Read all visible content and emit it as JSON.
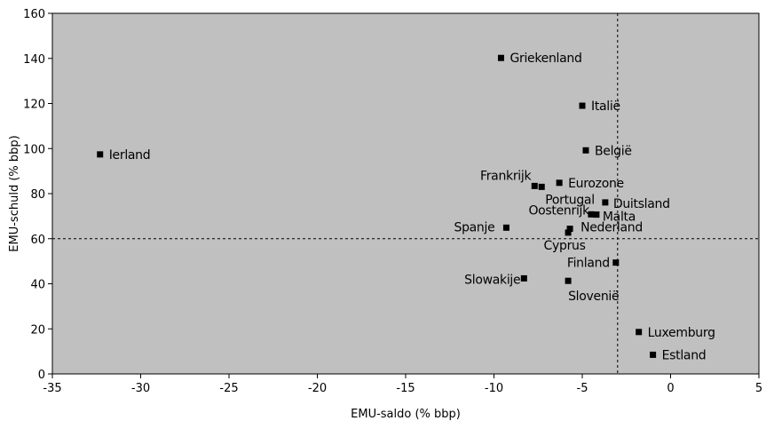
{
  "chart_data": {
    "type": "scatter",
    "xlabel": "EMU-saldo (% bbp)",
    "ylabel": "EMU-schuld (% bbp)",
    "xlim": [
      -35,
      5
    ],
    "ylim": [
      0,
      160
    ],
    "xticks": [
      -35,
      -30,
      -25,
      -20,
      -15,
      -10,
      -5,
      0,
      5
    ],
    "yticks": [
      0,
      20,
      40,
      60,
      80,
      100,
      120,
      140,
      160
    ],
    "reference_lines": {
      "x": -3,
      "y": 60
    },
    "grid": false,
    "background": "#c0c0c0",
    "marker_color": "#000000",
    "points": [
      {
        "label": "Griekenland",
        "x": -9.6,
        "y": 140.2
      },
      {
        "label": "Italië",
        "x": -5.0,
        "y": 119.0
      },
      {
        "label": "Ierland",
        "x": -32.3,
        "y": 97.4
      },
      {
        "label": "België",
        "x": -4.8,
        "y": 99.2
      },
      {
        "label": "Frankrijk",
        "x": -7.7,
        "y": 83.4
      },
      {
        "label": "Portugal",
        "x": -7.3,
        "y": 83.0
      },
      {
        "label": "Eurozone",
        "x": -6.3,
        "y": 84.8
      },
      {
        "label": "Duitsland",
        "x": -3.7,
        "y": 76.1
      },
      {
        "label": "Oostenrijk",
        "x": -4.5,
        "y": 70.8
      },
      {
        "label": "Malta",
        "x": -4.2,
        "y": 70.7
      },
      {
        "label": "Spanje",
        "x": -9.3,
        "y": 64.9
      },
      {
        "label": "Nederland",
        "x": -5.7,
        "y": 64.4
      },
      {
        "label": "Cyprus",
        "x": -5.8,
        "y": 62.7
      },
      {
        "label": "Finland",
        "x": -3.1,
        "y": 49.4
      },
      {
        "label": "Slowakije",
        "x": -8.3,
        "y": 42.4
      },
      {
        "label": "Slovenië",
        "x": -5.8,
        "y": 41.3
      },
      {
        "label": "Luxemburg",
        "x": -1.8,
        "y": 18.6
      },
      {
        "label": "Estland",
        "x": -1.0,
        "y": 8.5
      }
    ]
  }
}
